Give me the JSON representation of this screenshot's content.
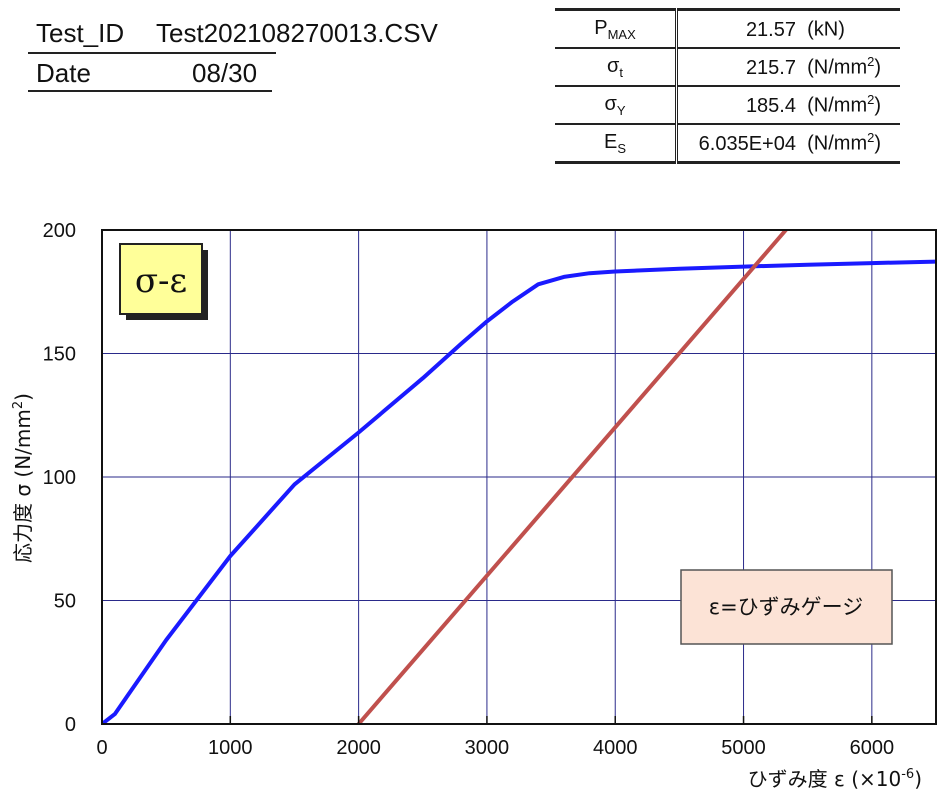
{
  "header": {
    "test_id_label": "Test_ID",
    "test_id_value": "Test202108270013.CSV",
    "date_label": "Date",
    "date_value": "08/30"
  },
  "results": [
    {
      "symbol": "P",
      "sub": "MAX",
      "value": "21.57",
      "unit": "(kN)",
      "unit_sup": ""
    },
    {
      "symbol": "σ",
      "sub": "t",
      "value": "215.7",
      "unit": "(N/mm",
      "unit_sup": "2"
    },
    {
      "symbol": "σ",
      "sub": "Y",
      "value": "185.4",
      "unit": "(N/mm",
      "unit_sup": "2"
    },
    {
      "symbol": "E",
      "sub": "S",
      "value": "6.035E+04",
      "unit": "(N/mm",
      "unit_sup": "2"
    }
  ],
  "chart_data": {
    "type": "line",
    "inset_label": "σ-ε",
    "annotation": "ε=ひずみゲージ",
    "xlabel": "ひずみ度 ε (×10",
    "xlabel_sup": "-6",
    "xlabel_tail": ")",
    "ylabel": "応力度 σ (N/mm",
    "ylabel_sup": "2",
    "ylabel_tail": ")",
    "xlim": [
      0,
      6500
    ],
    "ylim": [
      0,
      200
    ],
    "x_ticks": [
      0,
      1000,
      2000,
      3000,
      4000,
      5000,
      6000
    ],
    "y_ticks": [
      0,
      50,
      100,
      150,
      200
    ],
    "grid": true,
    "series": [
      {
        "color": "#1a1aff",
        "x": [
          0,
          100,
          500,
          1000,
          1500,
          2000,
          2500,
          2800,
          3000,
          3200,
          3400,
          3600,
          3800,
          4000,
          4500,
          5000,
          5500,
          6000,
          6500
        ],
        "y": [
          0,
          4,
          34,
          68,
          97,
          118,
          140,
          154,
          163,
          171,
          178,
          181,
          182.5,
          183.2,
          184.3,
          185.2,
          185.9,
          186.6,
          187.2
        ]
      },
      {
        "color": "#c0504d",
        "x": [
          2000,
          5330
        ],
        "y": [
          0,
          200
        ]
      }
    ]
  }
}
